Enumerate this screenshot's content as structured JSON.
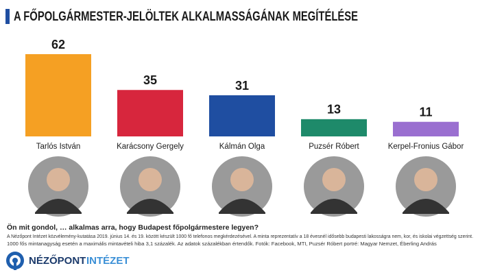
{
  "chart_data": {
    "type": "bar",
    "title": "A FŐPOLGÁRMESTER-JELÖLTEK ALKALMASSÁGÁNAK MEGÍTÉLÉSE",
    "categories": [
      "Tarlós István",
      "Karácsony Gergely",
      "Kálmán Olga",
      "Puzsér Róbert",
      "Kerpel-Fronius Gábor"
    ],
    "values": [
      62,
      35,
      31,
      13,
      11
    ],
    "colors": [
      "#f5a023",
      "#d7263d",
      "#1f4ea1",
      "#1e8a6a",
      "#9a6fd0"
    ],
    "question": "Ön mit gondol, … alkalmas arra, hogy Budapest főpolgármestere legyen?",
    "notes": [
      "A Nézőpont Intézet közvélemény-kutatása 2019. június 14. és 19. között készült 1000 fő telefonos megkérdezésével. A minta reprezentatív a 18 évesnél idősebb budapesti lakosságra nem, kor, és iskolai végzettség szerint.",
      "1000 fős mintanagyság esetén a maximális mintavételi hiba 3,1 százalék. Az adatok százalékban értendők. Fotók: Facebook, MTI, Puzsér Róbert portré: Magyar Nemzet, Éberling András"
    ],
    "logo": [
      "NÉZŐPONT",
      "INTÉZET"
    ]
  }
}
